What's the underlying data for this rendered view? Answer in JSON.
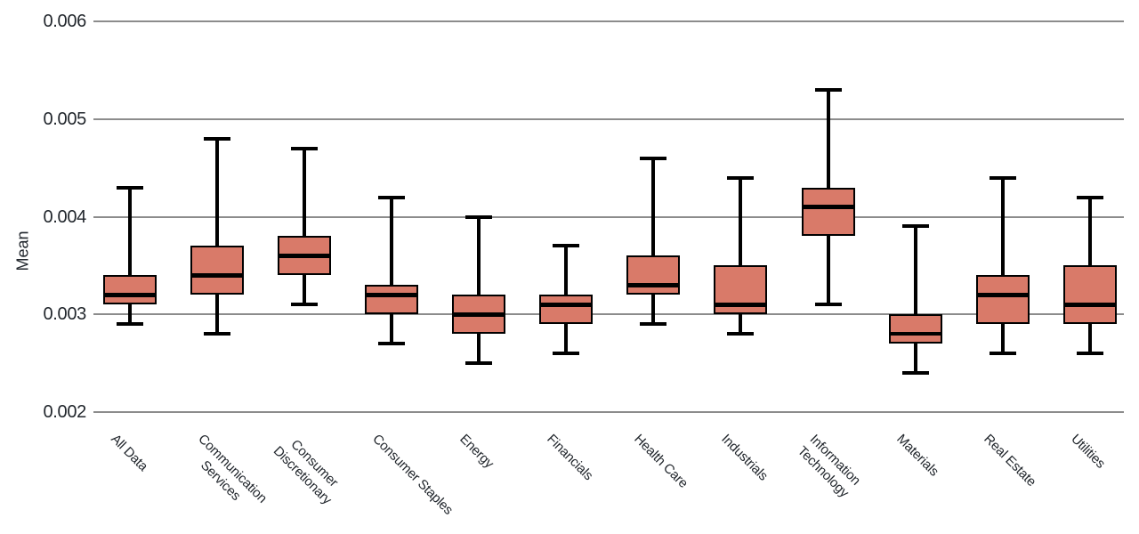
{
  "chart_data": {
    "type": "boxplot",
    "title": "",
    "xlabel": "",
    "ylabel": "Mean",
    "ylim": [
      0.002,
      0.006
    ],
    "yticks": [
      0.006,
      0.005,
      0.004,
      0.003,
      0.002
    ],
    "ytick_labels": [
      "0.006",
      "0.005",
      "0.004",
      "0.003",
      "0.002"
    ],
    "grid": true,
    "legend": false,
    "colors": {
      "box_fill": "#d97a69",
      "box_border": "#000000",
      "whisker": "#000000",
      "median": "#000000",
      "gridline": "#8c8c8c",
      "text": "#21262c",
      "background": "#ffffff"
    },
    "categories": [
      "All Data",
      "Communication\nServices",
      "Consumer\nDiscretionary",
      "Consumer Staples",
      "Energy",
      "Financials",
      "Health Care",
      "Industrials",
      "Information\nTechnology",
      "Materials",
      "Real Estate",
      "Utilities"
    ],
    "series": [
      {
        "category": "All Data",
        "whisker_low": 0.0029,
        "q1": 0.0031,
        "median": 0.0032,
        "q3": 0.0034,
        "whisker_high": 0.0043
      },
      {
        "category": "Communication Services",
        "whisker_low": 0.0028,
        "q1": 0.0032,
        "median": 0.0034,
        "q3": 0.0037,
        "whisker_high": 0.0048
      },
      {
        "category": "Consumer Discretionary",
        "whisker_low": 0.0031,
        "q1": 0.0034,
        "median": 0.0036,
        "q3": 0.0038,
        "whisker_high": 0.0047
      },
      {
        "category": "Consumer Staples",
        "whisker_low": 0.0027,
        "q1": 0.003,
        "median": 0.0032,
        "q3": 0.0033,
        "whisker_high": 0.0042
      },
      {
        "category": "Energy",
        "whisker_low": 0.0025,
        "q1": 0.0028,
        "median": 0.003,
        "q3": 0.0032,
        "whisker_high": 0.004
      },
      {
        "category": "Financials",
        "whisker_low": 0.0026,
        "q1": 0.0029,
        "median": 0.0031,
        "q3": 0.0032,
        "whisker_high": 0.0037
      },
      {
        "category": "Health Care",
        "whisker_low": 0.0029,
        "q1": 0.0032,
        "median": 0.0033,
        "q3": 0.0036,
        "whisker_high": 0.0046
      },
      {
        "category": "Industrials",
        "whisker_low": 0.0028,
        "q1": 0.003,
        "median": 0.0031,
        "q3": 0.0035,
        "whisker_high": 0.0044
      },
      {
        "category": "Information Technology",
        "whisker_low": 0.0031,
        "q1": 0.0038,
        "median": 0.0041,
        "q3": 0.0043,
        "whisker_high": 0.0053
      },
      {
        "category": "Materials",
        "whisker_low": 0.0024,
        "q1": 0.0027,
        "median": 0.0028,
        "q3": 0.003,
        "whisker_high": 0.0039
      },
      {
        "category": "Real Estate",
        "whisker_low": 0.0026,
        "q1": 0.0029,
        "median": 0.0032,
        "q3": 0.0034,
        "whisker_high": 0.0044
      },
      {
        "category": "Utilities",
        "whisker_low": 0.0026,
        "q1": 0.0029,
        "median": 0.0031,
        "q3": 0.0035,
        "whisker_high": 0.0042
      }
    ]
  }
}
